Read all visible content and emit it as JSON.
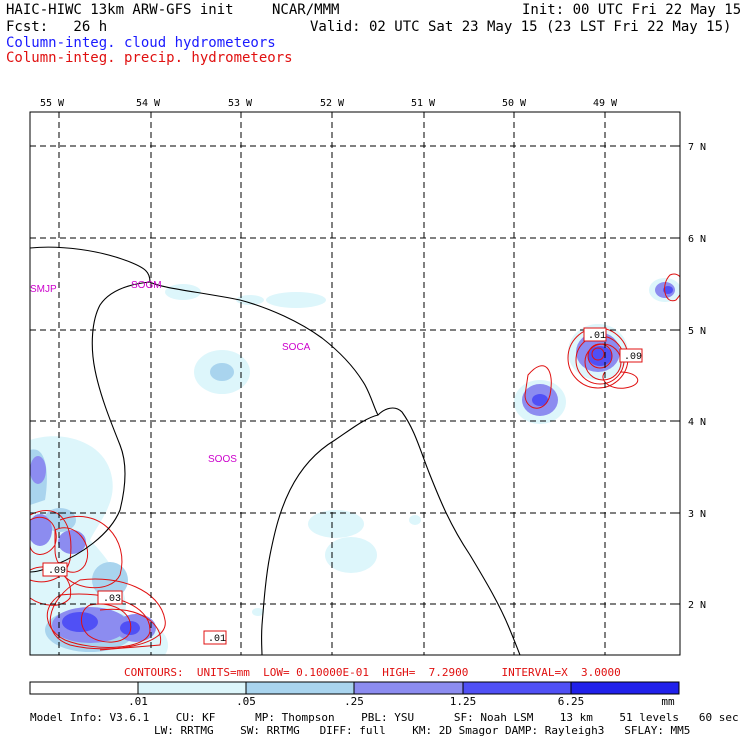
{
  "header": {
    "model_title": "HAIC-HIWC 13km ARW-GFS init",
    "institution": "NCAR/MMM",
    "init_time": "Init: 00 UTC Fri 22 May 15",
    "forecast": "Fcst:   26 h",
    "valid_time": "Valid: 02 UTC Sat 23 May 15 (23 LST Fri 22 May 15)",
    "field_cloud": "Column-integ. cloud hydrometeors",
    "field_precip": "Column-integ. precip. hydrometeors"
  },
  "map": {
    "longitude_labels": [
      "55 W",
      "54 W",
      "53 W",
      "52 W",
      "51 W",
      "50 W",
      "49 W"
    ],
    "latitude_labels": [
      "7 N",
      "6 N",
      "5 N",
      "4 N",
      "3 N",
      "2 N"
    ],
    "station_labels": [
      "SMJP",
      "SOGM",
      "SOCA",
      "SOOS"
    ],
    "contour_labels": [
      ".01",
      ".09",
      ".09",
      ".03",
      ".01"
    ]
  },
  "contours_line": "CONTOURS:  UNITS=mm  LOW= 0.10000E-01  HIGH=  7.2900     INTERVAL=X  3.0000",
  "colorbar": {
    "ticks": [
      ".01",
      ".05",
      ".25",
      "1.25",
      "6.25"
    ],
    "units": "mm",
    "colors": [
      "#ffffff",
      "#ddf6fb",
      "#a9d4ee",
      "#8c8cf0",
      "#5050f5",
      "#2020ea"
    ]
  },
  "model_info": {
    "line1": "Model Info: V3.6.1    CU: KF      MP: Thompson    PBL: YSU      SF: Noah LSM    13 km    51 levels   60 sec",
    "line2": "LW: RRTMG    SW: RRTMG   DIFF: full    KM: 2D Smagor DAMP: Rayleigh3   SFLAY: MM5"
  },
  "colors": {
    "contour_red": "#e01010",
    "cloud_light": "#ddf6fb",
    "cloud_mid": "#a9d4ee",
    "precip_blue": "#8c8cf0",
    "precip_dark": "#5050f5",
    "label_magenta": "#cc00cc"
  }
}
